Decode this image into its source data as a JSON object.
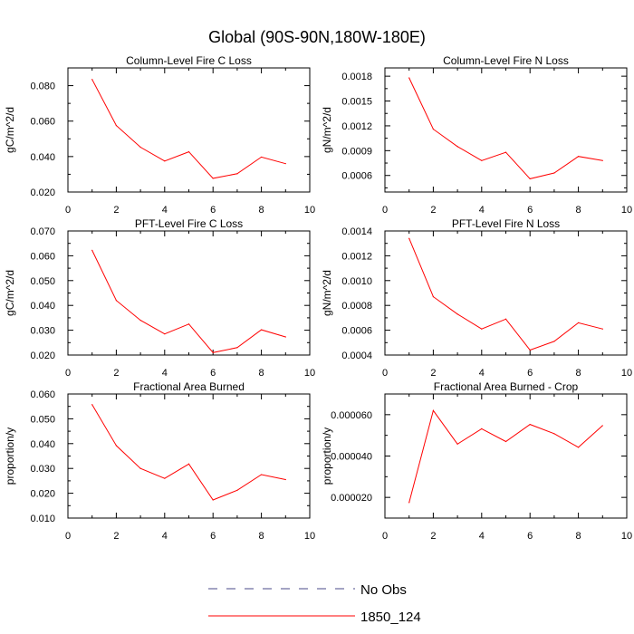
{
  "page_title": "Global (90S-90N,180W-180E)",
  "colors": {
    "series": "#ff0000",
    "obs": "#4a4a8a",
    "axis": "#000000"
  },
  "legend": {
    "obs_label": "No Obs",
    "case_label": "1850_124"
  },
  "chart_data": [
    {
      "type": "line",
      "title": "Column-Level Fire C Loss",
      "ylabel": "gC/m^2/d",
      "xlim": [
        0,
        10
      ],
      "ylim": [
        0.02,
        0.09
      ],
      "x_ticks": [
        "0",
        "2",
        "4",
        "6",
        "8",
        "10"
      ],
      "y_ticks": [
        {
          "v": 0.02,
          "label": "0.020"
        },
        {
          "v": 0.04,
          "label": "0.040"
        },
        {
          "v": 0.06,
          "label": "0.060"
        },
        {
          "v": 0.08,
          "label": "0.080"
        }
      ],
      "series": [
        {
          "name": "1850_124",
          "x": [
            1,
            2,
            3,
            4,
            5,
            6,
            7,
            8,
            9
          ],
          "values": [
            0.0835,
            0.0575,
            0.0453,
            0.0375,
            0.0427,
            0.0277,
            0.0303,
            0.0397,
            0.036
          ]
        }
      ]
    },
    {
      "type": "line",
      "title": "Column-Level Fire N Loss",
      "ylabel": "gN/m^2/d",
      "xlim": [
        0,
        10
      ],
      "ylim": [
        0.0004,
        0.0019
      ],
      "x_ticks": [
        "0",
        "2",
        "4",
        "6",
        "8",
        "10"
      ],
      "y_ticks": [
        {
          "v": 0.0006,
          "label": "0.0006"
        },
        {
          "v": 0.0009,
          "label": "0.0009"
        },
        {
          "v": 0.0012,
          "label": "0.0012"
        },
        {
          "v": 0.0015,
          "label": "0.0015"
        },
        {
          "v": 0.0018,
          "label": "0.0018"
        }
      ],
      "series": [
        {
          "name": "1850_124",
          "x": [
            1,
            2,
            3,
            4,
            5,
            6,
            7,
            8,
            9
          ],
          "values": [
            0.00178,
            0.00116,
            0.00095,
            0.00078,
            0.00088,
            0.00056,
            0.00063,
            0.00083,
            0.00078
          ]
        }
      ]
    },
    {
      "type": "line",
      "title": "PFT-Level Fire C Loss",
      "ylabel": "gC/m^2/d",
      "xlim": [
        0,
        10
      ],
      "ylim": [
        0.02,
        0.07
      ],
      "x_ticks": [
        "0",
        "2",
        "4",
        "6",
        "8",
        "10"
      ],
      "y_ticks": [
        {
          "v": 0.02,
          "label": "0.020"
        },
        {
          "v": 0.03,
          "label": "0.030"
        },
        {
          "v": 0.04,
          "label": "0.040"
        },
        {
          "v": 0.05,
          "label": "0.050"
        },
        {
          "v": 0.06,
          "label": "0.060"
        },
        {
          "v": 0.07,
          "label": "0.070"
        }
      ],
      "series": [
        {
          "name": "1850_124",
          "x": [
            1,
            2,
            3,
            4,
            5,
            6,
            7,
            8,
            9
          ],
          "values": [
            0.0622,
            0.042,
            0.034,
            0.0285,
            0.0325,
            0.021,
            0.023,
            0.0302,
            0.0273
          ]
        }
      ]
    },
    {
      "type": "line",
      "title": "PFT-Level Fire N Loss",
      "ylabel": "gN/m^2/d",
      "xlim": [
        0,
        10
      ],
      "ylim": [
        0.0004,
        0.0014
      ],
      "x_ticks": [
        "0",
        "2",
        "4",
        "6",
        "8",
        "10"
      ],
      "y_ticks": [
        {
          "v": 0.0004,
          "label": "0.0004"
        },
        {
          "v": 0.0006,
          "label": "0.0006"
        },
        {
          "v": 0.0008,
          "label": "0.0008"
        },
        {
          "v": 0.001,
          "label": "0.0010"
        },
        {
          "v": 0.0012,
          "label": "0.0012"
        },
        {
          "v": 0.0014,
          "label": "0.0014"
        }
      ],
      "series": [
        {
          "name": "1850_124",
          "x": [
            1,
            2,
            3,
            4,
            5,
            6,
            7,
            8,
            9
          ],
          "values": [
            0.00134,
            0.00087,
            0.00073,
            0.00061,
            0.00069,
            0.00044,
            0.00051,
            0.00066,
            0.00061
          ]
        }
      ]
    },
    {
      "type": "line",
      "title": "Fractional Area Burned",
      "ylabel": "proportion/y",
      "xlim": [
        0,
        10
      ],
      "ylim": [
        0.01,
        0.06
      ],
      "x_ticks": [
        "0",
        "2",
        "4",
        "6",
        "8",
        "10"
      ],
      "y_ticks": [
        {
          "v": 0.01,
          "label": "0.010"
        },
        {
          "v": 0.02,
          "label": "0.020"
        },
        {
          "v": 0.03,
          "label": "0.030"
        },
        {
          "v": 0.04,
          "label": "0.040"
        },
        {
          "v": 0.05,
          "label": "0.050"
        },
        {
          "v": 0.06,
          "label": "0.060"
        }
      ],
      "series": [
        {
          "name": "1850_124",
          "x": [
            1,
            2,
            3,
            4,
            5,
            6,
            7,
            8,
            9
          ],
          "values": [
            0.0557,
            0.0392,
            0.03,
            0.026,
            0.0318,
            0.0173,
            0.0212,
            0.0275,
            0.0255
          ]
        }
      ]
    },
    {
      "type": "line",
      "title": "Fractional Area Burned - Crop",
      "ylabel": "proportion/y",
      "xlim": [
        0,
        10
      ],
      "ylim": [
        1e-05,
        7e-05
      ],
      "x_ticks": [
        "0",
        "2",
        "4",
        "6",
        "8",
        "10"
      ],
      "y_ticks": [
        {
          "v": 2e-05,
          "label": "0.000020"
        },
        {
          "v": 4e-05,
          "label": "0.000040"
        },
        {
          "v": 6e-05,
          "label": "0.000060"
        }
      ],
      "series": [
        {
          "name": "1850_124",
          "x": [
            1,
            2,
            3,
            4,
            5,
            6,
            7,
            8,
            9
          ],
          "values": [
            1.75e-05,
            6.2e-05,
            4.58e-05,
            5.32e-05,
            4.7e-05,
            5.53e-05,
            5.08e-05,
            4.42e-05,
            5.47e-05
          ]
        }
      ]
    }
  ]
}
